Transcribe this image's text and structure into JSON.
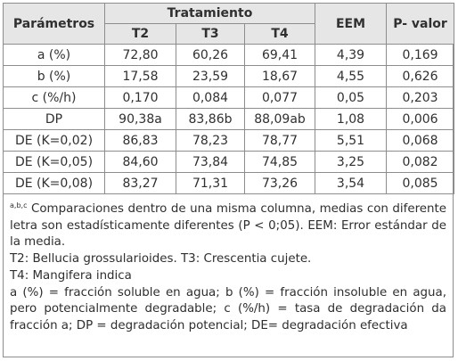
{
  "table": {
    "headers": {
      "parametros": "Parámetros",
      "tratamiento": "Tratamiento",
      "eem": "EEM",
      "p_valor": "P- valor",
      "subs": [
        "T2",
        "T3",
        "T4"
      ]
    },
    "rows": [
      {
        "label": "a (%)",
        "t2": "72,80",
        "t3": "60,26",
        "t4": "69,41",
        "eem": "4,39",
        "p": "0,169"
      },
      {
        "label": "b (%)",
        "t2": "17,58",
        "t3": "23,59",
        "t4": "18,67",
        "eem": "4,55",
        "p": "0,626"
      },
      {
        "label": "c (%/h)",
        "t2": "0,170",
        "t3": "0,084",
        "t4": "0,077",
        "eem": "0,05",
        "p": "0,203"
      },
      {
        "label": "DP",
        "t2": "90,38a",
        "t3": "83,86b",
        "t4": "88,09ab",
        "eem": "1,08",
        "p": "0,006"
      },
      {
        "label": "DE (K=0,02)",
        "t2": "86,83",
        "t3": "78,23",
        "t4": "78,77",
        "eem": "5,51",
        "p": "0,068"
      },
      {
        "label": "DE (K=0,05)",
        "t2": "84,60",
        "t3": "73,84",
        "t4": "74,85",
        "eem": "3,25",
        "p": "0,082"
      },
      {
        "label": "DE (K=0,08)",
        "t2": "83,27",
        "t3": "71,31",
        "t4": "73,26",
        "eem": "3,54",
        "p": "0,085"
      }
    ]
  },
  "notes": {
    "sup": "a,b,c",
    "line1": " Comparaciones dentro de una misma columna, medias con diferente letra son estadísticamente diferentes (P < 0;05). EEM: Error estándar de la media.",
    "line2": "T2: Bellucia grossularioides. T3: Crescentia cujete.",
    "line3": "T4: Mangifera indica",
    "line4": "a (%) = fracción soluble en agua; b (%) = fracción insoluble en agua, pero potencialmente degradable; c (%/h) = tasa de degradación da fracción a; DP = degradación potencial; DE= degradación efectiva"
  }
}
